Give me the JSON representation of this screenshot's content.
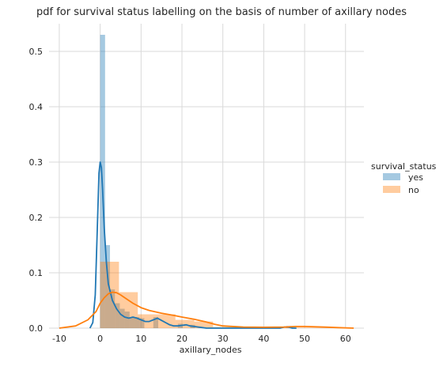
{
  "chart_data": {
    "type": "histogram-kde",
    "title": "pdf for survival status labelling on the basis of number of axillary nodes",
    "xlabel": "axillary_nodes",
    "ylabel": "",
    "xlim": [
      -12.5,
      64.5
    ],
    "ylim": [
      0,
      0.55
    ],
    "x_ticks": [
      -10,
      0,
      10,
      20,
      30,
      40,
      50,
      60
    ],
    "y_ticks": [
      0.0,
      0.1,
      0.2,
      0.3,
      0.4,
      0.5
    ],
    "grid": true,
    "legend": {
      "title": "survival_status",
      "placement": "right",
      "entries": [
        "yes",
        "no"
      ]
    },
    "series": [
      {
        "name": "yes",
        "color": "#1f77b4",
        "hist": [
          {
            "x0": 0.0,
            "x1": 1.2,
            "density": 0.53
          },
          {
            "x0": 1.2,
            "x1": 2.4,
            "density": 0.15
          },
          {
            "x0": 2.4,
            "x1": 3.6,
            "density": 0.07
          },
          {
            "x0": 3.6,
            "x1": 4.8,
            "density": 0.045
          },
          {
            "x0": 4.8,
            "x1": 6.0,
            "density": 0.035
          },
          {
            "x0": 6.0,
            "x1": 7.2,
            "density": 0.03
          },
          {
            "x0": 7.2,
            "x1": 8.4,
            "density": 0.02
          },
          {
            "x0": 8.4,
            "x1": 9.6,
            "density": 0.02
          },
          {
            "x0": 9.6,
            "x1": 10.8,
            "density": 0.018
          },
          {
            "x0": 13.0,
            "x1": 14.2,
            "density": 0.02
          },
          {
            "x0": 19.0,
            "x1": 20.2,
            "density": 0.008
          },
          {
            "x0": 22.0,
            "x1": 23.2,
            "density": 0.006
          },
          {
            "x0": 45.5,
            "x1": 46.7,
            "density": 0.004
          }
        ],
        "kde": {
          "x": [
            -2.5,
            -1.8,
            -1.2,
            -0.7,
            -0.3,
            0.0,
            0.3,
            0.6,
            1.0,
            1.5,
            2.0,
            3.0,
            4.0,
            5.0,
            6.0,
            7.0,
            8.0,
            9.0,
            10.0,
            11.0,
            12.0,
            13.0,
            14.0,
            15.0,
            16.0,
            17.0,
            18.0,
            19.0,
            20.0,
            21.0,
            22.0,
            23.0,
            24.0,
            26.0,
            30.0,
            35.0,
            40.0,
            44.0,
            45.0,
            46.0,
            47.0,
            48.0
          ],
          "y": [
            0.0,
            0.01,
            0.06,
            0.18,
            0.28,
            0.3,
            0.29,
            0.25,
            0.18,
            0.12,
            0.08,
            0.05,
            0.035,
            0.025,
            0.02,
            0.018,
            0.02,
            0.018,
            0.015,
            0.012,
            0.012,
            0.015,
            0.018,
            0.014,
            0.01,
            0.006,
            0.004,
            0.004,
            0.005,
            0.006,
            0.004,
            0.003,
            0.002,
            0.0,
            0.0,
            0.0,
            0.0,
            0.0,
            0.002,
            0.002,
            0.0,
            0.0
          ]
        }
      },
      {
        "name": "no",
        "color": "#ff7f0e",
        "hist": [
          {
            "x0": 0.0,
            "x1": 4.6,
            "density": 0.12
          },
          {
            "x0": 4.6,
            "x1": 9.2,
            "density": 0.065
          },
          {
            "x0": 9.2,
            "x1": 13.8,
            "density": 0.025
          },
          {
            "x0": 13.8,
            "x1": 18.4,
            "density": 0.025
          },
          {
            "x0": 18.4,
            "x1": 23.0,
            "density": 0.015
          },
          {
            "x0": 23.0,
            "x1": 27.6,
            "density": 0.012
          },
          {
            "x0": 27.6,
            "x1": 32.2,
            "density": 0.002
          },
          {
            "x0": 32.2,
            "x1": 36.8,
            "density": 0.002
          },
          {
            "x0": 36.8,
            "x1": 41.4,
            "density": 0.001
          },
          {
            "x0": 41.4,
            "x1": 46.0,
            "density": 0.001
          },
          {
            "x0": 46.0,
            "x1": 50.6,
            "density": 0.001
          },
          {
            "x0": 50.6,
            "x1": 55.2,
            "density": 0.001
          },
          {
            "x0": 55.2,
            "x1": 59.8,
            "density": 0.001
          },
          {
            "x0": 59.8,
            "x1": 62.0,
            "density": 0.001
          }
        ],
        "kde": {
          "x": [
            -10.0,
            -6.0,
            -3.0,
            -1.0,
            0.0,
            1.0,
            2.0,
            3.0,
            4.0,
            5.0,
            6.0,
            8.0,
            10.0,
            12.0,
            15.0,
            18.0,
            20.0,
            23.0,
            26.0,
            28.0,
            30.0,
            35.0,
            40.0,
            45.0,
            48.0,
            50.0,
            55.0,
            58.0,
            62.0
          ],
          "y": [
            0.0,
            0.004,
            0.015,
            0.03,
            0.045,
            0.055,
            0.062,
            0.065,
            0.064,
            0.06,
            0.055,
            0.045,
            0.037,
            0.032,
            0.027,
            0.023,
            0.02,
            0.016,
            0.011,
            0.007,
            0.004,
            0.002,
            0.0015,
            0.002,
            0.003,
            0.003,
            0.002,
            0.001,
            0.0
          ]
        }
      }
    ]
  }
}
